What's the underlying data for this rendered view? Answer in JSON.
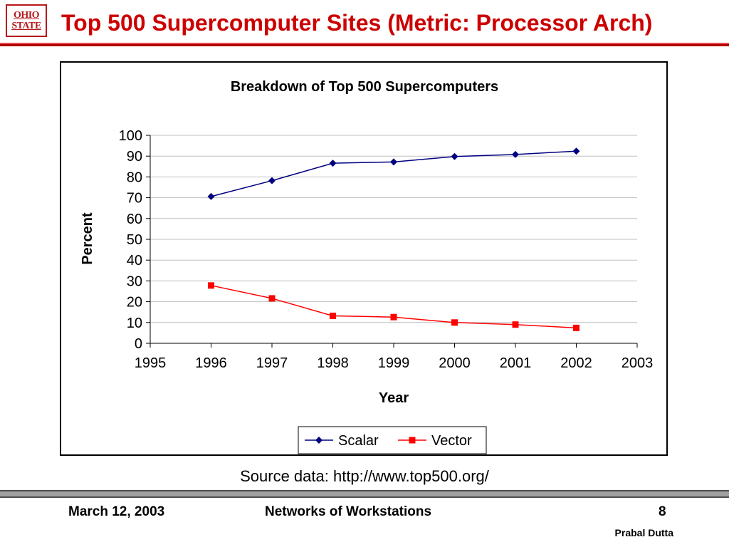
{
  "slide": {
    "logo_line1": "OHIO",
    "logo_line2": "STATE",
    "title": "Top 500 Supercomputer Sites (Metric: Processor Arch)",
    "source": "Source data: http://www.top500.org/",
    "accent_color": "#cc0000"
  },
  "footer": {
    "date": "March 12, 2003",
    "course": "Networks of Workstations",
    "page": "8",
    "author": "Prabal Dutta"
  },
  "chart_data": {
    "type": "line",
    "title": "Breakdown of Top 500 Supercomputers",
    "xlabel": "Year",
    "ylabel": "Percent",
    "xlim": [
      1995,
      2003
    ],
    "ylim": [
      0,
      100
    ],
    "xticks": [
      1995,
      1996,
      1997,
      1998,
      1999,
      2000,
      2001,
      2002,
      2003
    ],
    "yticks": [
      0,
      10,
      20,
      30,
      40,
      50,
      60,
      70,
      80,
      90,
      100
    ],
    "grid": true,
    "legend": "bottom",
    "x": [
      1996,
      1997,
      1998,
      1999,
      2000,
      2001,
      2002
    ],
    "series": [
      {
        "name": "Scalar",
        "values": [
          70.6,
          78.2,
          86.6,
          87.2,
          89.8,
          90.8,
          92.4
        ],
        "color": "#000080",
        "marker": "diamond"
      },
      {
        "name": "Vector",
        "values": [
          27.8,
          21.6,
          13.2,
          12.6,
          10.0,
          9.0,
          7.4
        ],
        "color": "#ff0000",
        "marker": "square"
      }
    ]
  }
}
